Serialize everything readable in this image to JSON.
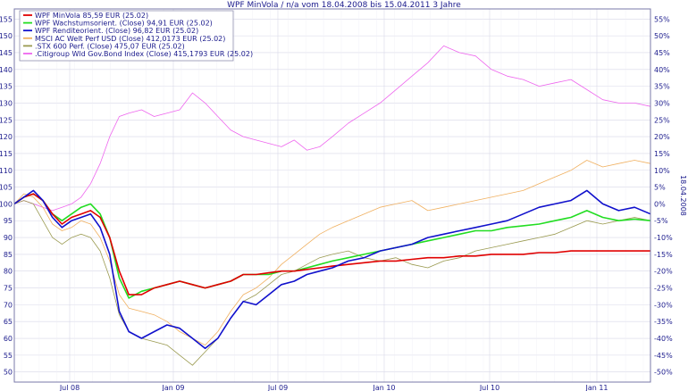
{
  "chart_data": {
    "type": "line",
    "title": "WPF MinVola / n/a vom 18.04.2008 bis 15.04.2011 3 Jahre",
    "right_axis_label": "18.04.2008",
    "left_axis": {
      "ylim": [
        47,
        158
      ],
      "ticks": [
        "50",
        "55",
        "60",
        "65",
        "70",
        "75",
        "80",
        "85",
        "90",
        "95",
        "100",
        "105",
        "110",
        "115",
        "120",
        "125",
        "130",
        "135",
        "140",
        "145",
        "150",
        "155"
      ]
    },
    "right_axis": {
      "ticks": [
        "55%",
        "50%",
        "45%",
        "40%",
        "35%",
        "30%",
        "25%",
        "20%",
        "15%",
        "10%",
        "5%",
        "0%",
        "-5%",
        "-10%",
        "-15%",
        "-20%",
        "-25%",
        "-30%",
        "-35%",
        "-40%",
        "-45%",
        "-50%"
      ]
    },
    "x_axis": {
      "ticks": [
        "Jul 08",
        "Jan 09",
        "Jul 09",
        "Jan 10",
        "Jul 10",
        "Jan 11"
      ]
    },
    "grid": true,
    "legend_position": "top-left",
    "series": [
      {
        "name": "WPF MinVola 85,59 EUR (25.02)",
        "color": "#e00000",
        "width": 1.6,
        "values": [
          [
            0,
            100
          ],
          [
            0.03,
            102
          ],
          [
            0.06,
            103
          ],
          [
            0.09,
            101
          ],
          [
            0.12,
            97
          ],
          [
            0.15,
            94
          ],
          [
            0.18,
            96
          ],
          [
            0.21,
            97
          ],
          [
            0.24,
            98
          ],
          [
            0.27,
            96
          ],
          [
            0.3,
            90
          ],
          [
            0.33,
            80
          ],
          [
            0.36,
            73
          ],
          [
            0.4,
            73
          ],
          [
            0.44,
            75
          ],
          [
            0.48,
            76
          ],
          [
            0.52,
            77
          ],
          [
            0.56,
            76
          ],
          [
            0.6,
            75
          ],
          [
            0.64,
            76
          ],
          [
            0.68,
            77
          ],
          [
            0.72,
            79
          ],
          [
            0.76,
            79
          ],
          [
            0.8,
            79.5
          ],
          [
            0.84,
            80
          ],
          [
            0.88,
            80
          ],
          [
            0.92,
            80.5
          ],
          [
            0.96,
            81
          ],
          [
            1.0,
            81.5
          ],
          [
            1.05,
            82
          ],
          [
            1.1,
            82.5
          ],
          [
            1.15,
            83
          ],
          [
            1.2,
            83
          ],
          [
            1.25,
            83.5
          ],
          [
            1.3,
            84
          ],
          [
            1.35,
            84
          ],
          [
            1.4,
            84.5
          ],
          [
            1.45,
            84.5
          ],
          [
            1.5,
            85
          ],
          [
            1.55,
            85
          ],
          [
            1.6,
            85
          ],
          [
            1.65,
            85.5
          ],
          [
            1.7,
            85.5
          ],
          [
            1.75,
            86
          ],
          [
            1.8,
            86
          ],
          [
            1.85,
            86
          ],
          [
            1.9,
            86
          ],
          [
            1.95,
            86
          ],
          [
            2.0,
            86
          ]
        ]
      },
      {
        "name": "WPF Wachstumsorient. (Close) 94,91 EUR (25.02)",
        "color": "#22dd22",
        "width": 1.6,
        "values": [
          [
            0,
            100
          ],
          [
            0.03,
            102
          ],
          [
            0.06,
            103
          ],
          [
            0.09,
            101
          ],
          [
            0.12,
            97
          ],
          [
            0.15,
            95
          ],
          [
            0.18,
            97
          ],
          [
            0.21,
            99
          ],
          [
            0.24,
            100
          ],
          [
            0.27,
            97
          ],
          [
            0.3,
            90
          ],
          [
            0.33,
            78
          ],
          [
            0.36,
            72
          ],
          [
            0.4,
            74
          ],
          [
            0.44,
            75
          ],
          [
            0.48,
            76
          ],
          [
            0.52,
            77
          ],
          [
            0.56,
            76
          ],
          [
            0.6,
            75
          ],
          [
            0.64,
            76
          ],
          [
            0.68,
            77
          ],
          [
            0.72,
            79
          ],
          [
            0.76,
            79
          ],
          [
            0.8,
            79
          ],
          [
            0.84,
            80
          ],
          [
            0.88,
            80
          ],
          [
            0.92,
            81
          ],
          [
            0.96,
            82
          ],
          [
            1.0,
            83
          ],
          [
            1.05,
            84
          ],
          [
            1.1,
            85
          ],
          [
            1.15,
            86
          ],
          [
            1.2,
            87
          ],
          [
            1.25,
            88
          ],
          [
            1.3,
            89
          ],
          [
            1.35,
            90
          ],
          [
            1.4,
            91
          ],
          [
            1.45,
            92
          ],
          [
            1.5,
            92
          ],
          [
            1.55,
            93
          ],
          [
            1.6,
            93.5
          ],
          [
            1.65,
            94
          ],
          [
            1.7,
            95
          ],
          [
            1.75,
            96
          ],
          [
            1.8,
            98
          ],
          [
            1.85,
            96
          ],
          [
            1.9,
            95
          ],
          [
            1.95,
            95.5
          ],
          [
            2.0,
            95
          ]
        ]
      },
      {
        "name": "WPF Renditeorient. (Close) 96,82 EUR (25.02)",
        "color": "#1010cc",
        "width": 1.6,
        "values": [
          [
            0,
            100
          ],
          [
            0.03,
            102
          ],
          [
            0.06,
            104
          ],
          [
            0.09,
            101
          ],
          [
            0.12,
            96
          ],
          [
            0.15,
            93
          ],
          [
            0.18,
            95
          ],
          [
            0.21,
            96
          ],
          [
            0.24,
            97
          ],
          [
            0.27,
            93
          ],
          [
            0.3,
            85
          ],
          [
            0.33,
            68
          ],
          [
            0.36,
            62
          ],
          [
            0.4,
            60
          ],
          [
            0.44,
            62
          ],
          [
            0.48,
            64
          ],
          [
            0.52,
            63
          ],
          [
            0.56,
            60
          ],
          [
            0.6,
            57
          ],
          [
            0.64,
            60
          ],
          [
            0.68,
            66
          ],
          [
            0.72,
            71
          ],
          [
            0.76,
            70
          ],
          [
            0.8,
            73
          ],
          [
            0.84,
            76
          ],
          [
            0.88,
            77
          ],
          [
            0.92,
            79
          ],
          [
            0.96,
            80
          ],
          [
            1.0,
            81
          ],
          [
            1.05,
            83
          ],
          [
            1.1,
            84
          ],
          [
            1.15,
            86
          ],
          [
            1.2,
            87
          ],
          [
            1.25,
            88
          ],
          [
            1.3,
            90
          ],
          [
            1.35,
            91
          ],
          [
            1.4,
            92
          ],
          [
            1.45,
            93
          ],
          [
            1.5,
            94
          ],
          [
            1.55,
            95
          ],
          [
            1.6,
            97
          ],
          [
            1.65,
            99
          ],
          [
            1.7,
            100
          ],
          [
            1.75,
            101
          ],
          [
            1.8,
            104
          ],
          [
            1.85,
            100
          ],
          [
            1.9,
            98
          ],
          [
            1.95,
            99
          ],
          [
            2.0,
            97
          ]
        ]
      },
      {
        "name": "MSCI AC Welt Perf USD (Close) 412,0173 EUR (25.02)",
        "color": "#f0b060",
        "width": 0.8,
        "values": [
          [
            0,
            100
          ],
          [
            0.03,
            103
          ],
          [
            0.06,
            102
          ],
          [
            0.09,
            99
          ],
          [
            0.12,
            94
          ],
          [
            0.15,
            92
          ],
          [
            0.18,
            93
          ],
          [
            0.21,
            95
          ],
          [
            0.24,
            94
          ],
          [
            0.27,
            90
          ],
          [
            0.3,
            83
          ],
          [
            0.33,
            73
          ],
          [
            0.36,
            69
          ],
          [
            0.4,
            68
          ],
          [
            0.44,
            67
          ],
          [
            0.48,
            65
          ],
          [
            0.52,
            62
          ],
          [
            0.56,
            60
          ],
          [
            0.6,
            58
          ],
          [
            0.64,
            62
          ],
          [
            0.68,
            68
          ],
          [
            0.72,
            73
          ],
          [
            0.76,
            75
          ],
          [
            0.8,
            78
          ],
          [
            0.84,
            82
          ],
          [
            0.88,
            85
          ],
          [
            0.92,
            88
          ],
          [
            0.96,
            91
          ],
          [
            1.0,
            93
          ],
          [
            1.05,
            95
          ],
          [
            1.1,
            97
          ],
          [
            1.15,
            99
          ],
          [
            1.2,
            100
          ],
          [
            1.25,
            101
          ],
          [
            1.3,
            98
          ],
          [
            1.35,
            99
          ],
          [
            1.4,
            100
          ],
          [
            1.45,
            101
          ],
          [
            1.5,
            102
          ],
          [
            1.55,
            103
          ],
          [
            1.6,
            104
          ],
          [
            1.65,
            106
          ],
          [
            1.7,
            108
          ],
          [
            1.75,
            110
          ],
          [
            1.8,
            113
          ],
          [
            1.85,
            111
          ],
          [
            1.9,
            112
          ],
          [
            1.95,
            113
          ],
          [
            2.0,
            112
          ]
        ]
      },
      {
        "name": ".STX 600 Perf. (Close) 475,07 EUR (25.02)",
        "color": "#9a9a50",
        "width": 0.8,
        "values": [
          [
            0,
            100
          ],
          [
            0.03,
            101
          ],
          [
            0.06,
            100
          ],
          [
            0.09,
            95
          ],
          [
            0.12,
            90
          ],
          [
            0.15,
            88
          ],
          [
            0.18,
            90
          ],
          [
            0.21,
            91
          ],
          [
            0.24,
            90
          ],
          [
            0.27,
            86
          ],
          [
            0.3,
            78
          ],
          [
            0.33,
            67
          ],
          [
            0.36,
            62
          ],
          [
            0.4,
            60
          ],
          [
            0.44,
            59
          ],
          [
            0.48,
            58
          ],
          [
            0.52,
            55
          ],
          [
            0.56,
            52
          ],
          [
            0.6,
            56
          ],
          [
            0.64,
            60
          ],
          [
            0.68,
            66
          ],
          [
            0.72,
            71
          ],
          [
            0.76,
            73
          ],
          [
            0.8,
            76
          ],
          [
            0.84,
            79
          ],
          [
            0.88,
            80
          ],
          [
            0.92,
            82
          ],
          [
            0.96,
            84
          ],
          [
            1.0,
            85
          ],
          [
            1.05,
            86
          ],
          [
            1.1,
            84
          ],
          [
            1.15,
            83
          ],
          [
            1.2,
            84
          ],
          [
            1.25,
            82
          ],
          [
            1.3,
            81
          ],
          [
            1.35,
            83
          ],
          [
            1.4,
            84
          ],
          [
            1.45,
            86
          ],
          [
            1.5,
            87
          ],
          [
            1.55,
            88
          ],
          [
            1.6,
            89
          ],
          [
            1.65,
            90
          ],
          [
            1.7,
            91
          ],
          [
            1.75,
            93
          ],
          [
            1.8,
            95
          ],
          [
            1.85,
            94
          ],
          [
            1.9,
            95
          ],
          [
            1.95,
            96
          ],
          [
            2.0,
            95
          ]
        ]
      },
      {
        "name": ".Citigroup Wld Gov.Bond Index (Close) 415,1793 EUR (25.02)",
        "color": "#ee66ee",
        "width": 0.8,
        "values": [
          [
            0,
            100
          ],
          [
            0.03,
            101
          ],
          [
            0.06,
            100
          ],
          [
            0.09,
            99
          ],
          [
            0.12,
            98
          ],
          [
            0.15,
            99
          ],
          [
            0.18,
            100
          ],
          [
            0.21,
            102
          ],
          [
            0.24,
            106
          ],
          [
            0.27,
            112
          ],
          [
            0.3,
            120
          ],
          [
            0.33,
            126
          ],
          [
            0.36,
            127
          ],
          [
            0.4,
            128
          ],
          [
            0.44,
            126
          ],
          [
            0.48,
            127
          ],
          [
            0.52,
            128
          ],
          [
            0.56,
            133
          ],
          [
            0.6,
            130
          ],
          [
            0.64,
            126
          ],
          [
            0.68,
            122
          ],
          [
            0.72,
            120
          ],
          [
            0.76,
            119
          ],
          [
            0.8,
            118
          ],
          [
            0.84,
            117
          ],
          [
            0.88,
            119
          ],
          [
            0.92,
            116
          ],
          [
            0.96,
            117
          ],
          [
            1.0,
            120
          ],
          [
            1.05,
            124
          ],
          [
            1.1,
            127
          ],
          [
            1.15,
            130
          ],
          [
            1.2,
            134
          ],
          [
            1.25,
            138
          ],
          [
            1.3,
            142
          ],
          [
            1.35,
            147
          ],
          [
            1.4,
            145
          ],
          [
            1.45,
            144
          ],
          [
            1.5,
            140
          ],
          [
            1.55,
            138
          ],
          [
            1.6,
            137
          ],
          [
            1.65,
            135
          ],
          [
            1.7,
            136
          ],
          [
            1.75,
            137
          ],
          [
            1.8,
            134
          ],
          [
            1.85,
            131
          ],
          [
            1.9,
            130
          ],
          [
            1.95,
            130
          ],
          [
            2.0,
            129
          ]
        ]
      }
    ]
  }
}
